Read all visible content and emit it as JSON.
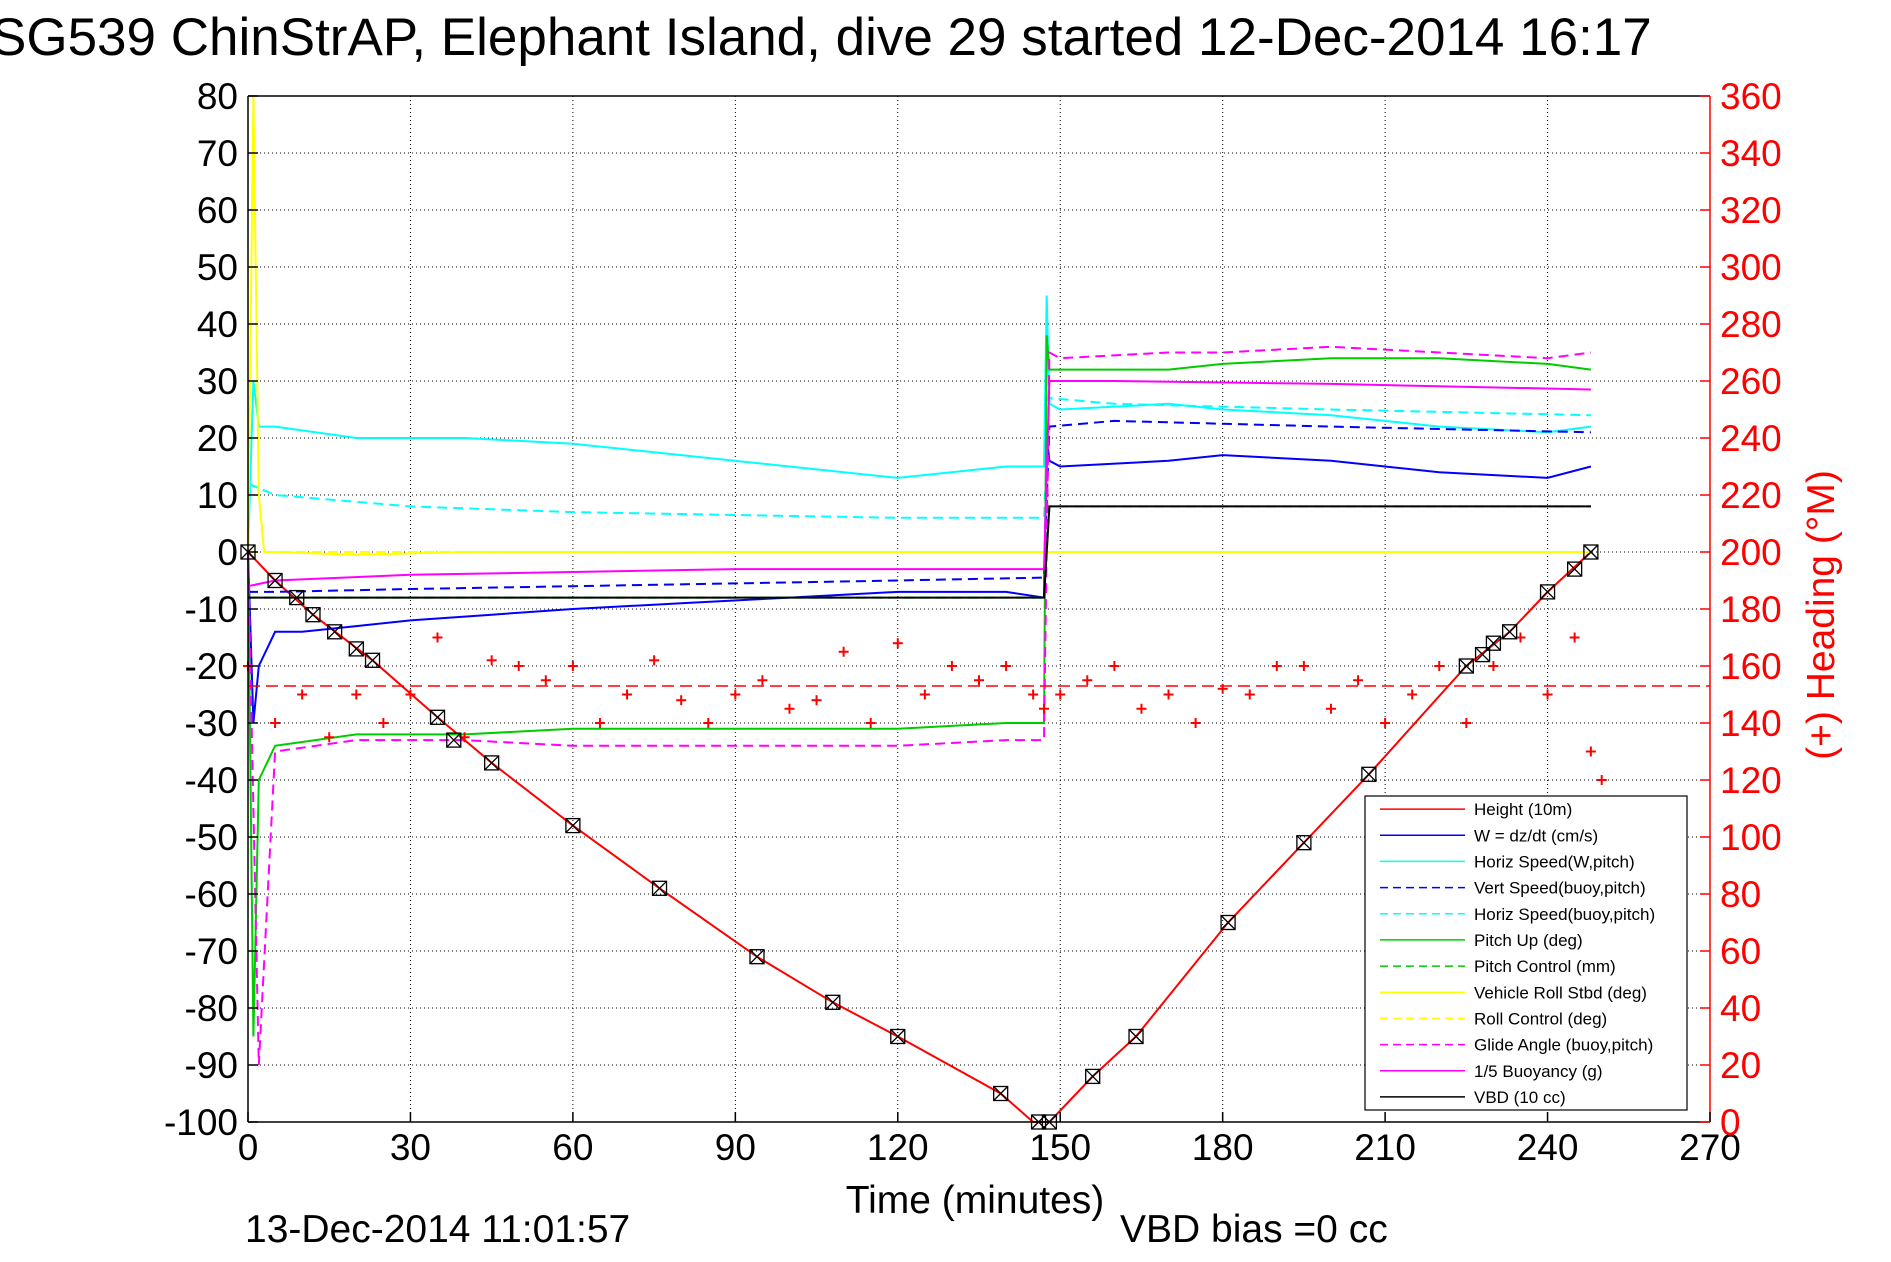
{
  "chart_data": {
    "type": "line",
    "title": "SG539 ChinStrAP, Elephant Island, dive 29 started 12-Dec-2014 16:17",
    "xlabel": "Time (minutes)",
    "ylabel": "",
    "y2label": "(+) Heading (°M)",
    "xlim": [
      0,
      270
    ],
    "ylim": [
      -100,
      80
    ],
    "y2lim": [
      0,
      360
    ],
    "x_ticks": [
      "0",
      "30",
      "60",
      "90",
      "120",
      "150",
      "180",
      "210",
      "240",
      "270"
    ],
    "y_ticks": [
      "80",
      "70",
      "60",
      "50",
      "40",
      "30",
      "20",
      "10",
      "0",
      "-10",
      "-20",
      "-30",
      "-40",
      "-50",
      "-60",
      "-70",
      "-80",
      "-90",
      "-100"
    ],
    "y2_ticks": [
      "360",
      "340",
      "320",
      "300",
      "280",
      "260",
      "240",
      "220",
      "200",
      "180",
      "160",
      "140",
      "120",
      "100",
      "80",
      "60",
      "40",
      "20",
      "0"
    ],
    "grid": true,
    "legend_position": "bottom-right",
    "footer_left": "13-Dec-2014 11:01:57",
    "footer_right": "VBD bias =0 cc",
    "heading_mean": 153,
    "series": [
      {
        "name": "Height (10m)",
        "color": "#ff0000",
        "style": "solid",
        "x": [
          0,
          5,
          12,
          23,
          35,
          45,
          60,
          76,
          94,
          108,
          120,
          139,
          145,
          148,
          156,
          164,
          181,
          195,
          207,
          225,
          233,
          240,
          248
        ],
        "y": [
          0,
          -5,
          -11,
          -19,
          -29,
          -37,
          -48,
          -59,
          -71,
          -79,
          -85,
          -95,
          -100,
          -100,
          -92,
          -85,
          -65,
          -51,
          -39,
          -20,
          -14,
          -7,
          0
        ]
      },
      {
        "name": "W = dz/dt (cm/s)",
        "color": "#0000ff",
        "style": "solid",
        "x": [
          0,
          1,
          2,
          5,
          10,
          20,
          30,
          45,
          60,
          80,
          100,
          120,
          140,
          147,
          147.5,
          148,
          150,
          170,
          180,
          200,
          220,
          240,
          248
        ],
        "y": [
          0,
          -30,
          -20,
          -14,
          -14,
          -13,
          -12,
          -11,
          -10,
          -9,
          -8,
          -7,
          -7,
          -8,
          20,
          16,
          15,
          16,
          17,
          16,
          14,
          13,
          15
        ]
      },
      {
        "name": "Horiz Speed(W,pitch)",
        "color": "#00ffff",
        "style": "solid",
        "x": [
          0,
          1,
          2,
          5,
          20,
          40,
          60,
          80,
          100,
          120,
          140,
          147,
          147.5,
          148,
          150,
          170,
          180,
          200,
          220,
          240,
          248
        ],
        "y": [
          0,
          30,
          22,
          22,
          20,
          20,
          19,
          17,
          15,
          13,
          15,
          15,
          45,
          26,
          25,
          26,
          25,
          24,
          22,
          21,
          22
        ]
      },
      {
        "name": "Vert Speed(buoy,pitch)",
        "color": "#0000ff",
        "style": "dashed",
        "x": [
          0,
          5,
          30,
          60,
          90,
          120,
          147,
          148,
          160,
          200,
          248
        ],
        "y": [
          -7,
          -7,
          -6.5,
          -6,
          -5.5,
          -5,
          -4.5,
          22,
          23,
          22,
          21
        ]
      },
      {
        "name": "Horiz Speed(buoy,pitch)",
        "color": "#00ffff",
        "style": "dashed",
        "x": [
          0,
          5,
          30,
          60,
          90,
          120,
          147,
          148,
          160,
          200,
          248
        ],
        "y": [
          12,
          10,
          8,
          7,
          6.5,
          6,
          6,
          27,
          26,
          25,
          24
        ]
      },
      {
        "name": "Pitch Up (deg)",
        "color": "#00cc00",
        "style": "solid",
        "x": [
          0,
          1,
          2,
          5,
          20,
          40,
          60,
          80,
          100,
          120,
          140,
          147,
          147.5,
          148,
          150,
          170,
          180,
          200,
          220,
          240,
          248
        ],
        "y": [
          0,
          -85,
          -40,
          -34,
          -32,
          -32,
          -31,
          -31,
          -31,
          -31,
          -30,
          -30,
          38,
          32,
          32,
          32,
          33,
          34,
          34,
          33,
          32
        ]
      },
      {
        "name": "Pitch Control (mm)",
        "color": "#00cc00",
        "style": "dashed",
        "x": [
          0,
          5,
          60,
          120,
          147,
          148,
          200,
          248
        ],
        "y": [
          -8,
          -8,
          -8,
          -8,
          -8,
          8,
          8,
          8
        ]
      },
      {
        "name": "Vehicle Roll Stbd (deg)",
        "color": "#ffff00",
        "style": "solid",
        "x": [
          0,
          1,
          2,
          3,
          5,
          20,
          40,
          60,
          80,
          100,
          120,
          147,
          148,
          180,
          200,
          220,
          240,
          248
        ],
        "y": [
          0,
          80,
          10,
          0,
          0,
          -0.5,
          0,
          0,
          0,
          0,
          0,
          0,
          0,
          0,
          0,
          0,
          0,
          0
        ]
      },
      {
        "name": "Roll Control (deg)",
        "color": "#ffff00",
        "style": "dashed",
        "x": [
          0,
          5,
          60,
          120,
          147,
          148,
          200,
          248
        ],
        "y": [
          0,
          0,
          0,
          0,
          0,
          0,
          0,
          0
        ]
      },
      {
        "name": "Glide Angle (buoy,pitch)",
        "color": "#ff00ff",
        "style": "dashed",
        "x": [
          0,
          2,
          5,
          20,
          40,
          60,
          80,
          100,
          120,
          140,
          147,
          148,
          150,
          170,
          180,
          200,
          220,
          240,
          248
        ],
        "y": [
          0,
          -90,
          -35,
          -33,
          -33,
          -34,
          -34,
          -34,
          -34,
          -33,
          -33,
          35,
          34,
          35,
          35,
          36,
          35,
          34,
          35
        ]
      },
      {
        "name": "1/5 Buoyancy (g)",
        "color": "#ff00ff",
        "style": "solid",
        "x": [
          0,
          5,
          30,
          60,
          90,
          120,
          147,
          148,
          160,
          200,
          248
        ],
        "y": [
          -6,
          -5,
          -4,
          -3.5,
          -3,
          -3,
          -3,
          30,
          30,
          29.5,
          28.5
        ]
      },
      {
        "name": "VBD (10 cc)",
        "color": "#000000",
        "style": "solid",
        "x": [
          0,
          5,
          60,
          120,
          147,
          148,
          150,
          200,
          248
        ],
        "y": [
          -8,
          -8,
          -8,
          -8,
          -8,
          8,
          8,
          8,
          8
        ]
      }
    ],
    "heading_series": {
      "name": "(+) Heading",
      "color": "#ff0000",
      "marker": "+",
      "x": [
        0,
        5,
        10,
        15,
        20,
        25,
        30,
        35,
        40,
        45,
        50,
        55,
        60,
        65,
        70,
        75,
        80,
        85,
        90,
        95,
        100,
        105,
        110,
        115,
        120,
        125,
        130,
        135,
        140,
        145,
        147,
        150,
        155,
        160,
        165,
        170,
        175,
        180,
        185,
        190,
        195,
        200,
        205,
        210,
        215,
        220,
        225,
        230,
        235,
        240,
        245,
        248,
        250
      ],
      "y": [
        160,
        140,
        150,
        135,
        150,
        140,
        150,
        170,
        135,
        162,
        160,
        155,
        160,
        140,
        150,
        162,
        148,
        140,
        150,
        155,
        145,
        148,
        165,
        140,
        168,
        150,
        160,
        155,
        160,
        150,
        145,
        150,
        155,
        160,
        145,
        150,
        140,
        152,
        150,
        160,
        160,
        145,
        155,
        140,
        150,
        160,
        140,
        160,
        170,
        150,
        170,
        130,
        120
      ]
    },
    "height_markers": {
      "x": [
        0,
        5,
        9,
        12,
        16,
        20,
        23,
        35,
        38,
        45,
        60,
        76,
        94,
        108,
        120,
        139,
        146,
        148,
        156,
        164,
        181,
        195,
        207,
        225,
        228,
        230,
        233,
        240,
        245,
        248
      ],
      "y": [
        0,
        -5,
        -8,
        -11,
        -14,
        -17,
        -19,
        -29,
        -33,
        -37,
        -48,
        -59,
        -71,
        -79,
        -85,
        -95,
        -100,
        -100,
        -92,
        -85,
        -65,
        -51,
        -39,
        -20,
        -18,
        -16,
        -14,
        -7,
        -3,
        0
      ]
    }
  }
}
